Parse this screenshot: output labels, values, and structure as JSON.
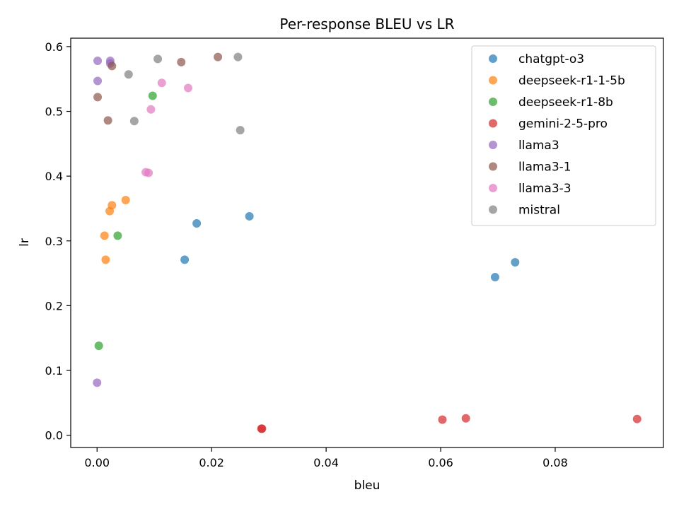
{
  "chart_data": {
    "type": "scatter",
    "title": "Per-response BLEU vs LR",
    "xlabel": "bleu",
    "ylabel": "lr",
    "xlim": [
      -0.0046,
      0.0989
    ],
    "ylim": [
      -0.019,
      0.613
    ],
    "xticks": [
      0.0,
      0.02,
      0.04,
      0.06,
      0.08
    ],
    "xtick_labels": [
      "0.00",
      "0.02",
      "0.04",
      "0.06",
      "0.08"
    ],
    "yticks": [
      0.0,
      0.1,
      0.2,
      0.3,
      0.4,
      0.5,
      0.6
    ],
    "ytick_labels": [
      "0.0",
      "0.1",
      "0.2",
      "0.3",
      "0.4",
      "0.5",
      "0.6"
    ],
    "grid": false,
    "legend_position": "top-right",
    "series": [
      {
        "name": "chatgpt-o3",
        "color": "#1f77b4",
        "points": [
          [
            0.0153,
            0.271
          ],
          [
            0.0174,
            0.327
          ],
          [
            0.0266,
            0.338
          ],
          [
            0.0695,
            0.244
          ],
          [
            0.073,
            0.267
          ]
        ]
      },
      {
        "name": "deepseek-r1-1-5b",
        "color": "#ff7f0e",
        "points": [
          [
            0.0013,
            0.308
          ],
          [
            0.0015,
            0.271
          ],
          [
            0.0022,
            0.346
          ],
          [
            0.0026,
            0.355
          ],
          [
            0.005,
            0.363
          ]
        ]
      },
      {
        "name": "deepseek-r1-8b",
        "color": "#2ca02c",
        "points": [
          [
            0.0036,
            0.308
          ],
          [
            0.0097,
            0.524
          ],
          [
            0.0003,
            0.138
          ]
        ]
      },
      {
        "name": "gemini-2-5-pro",
        "color": "#d62728",
        "points": [
          [
            0.0287,
            0.01
          ],
          [
            0.0288,
            0.01
          ],
          [
            0.0603,
            0.024
          ],
          [
            0.0644,
            0.026
          ],
          [
            0.0943,
            0.025
          ]
        ]
      },
      {
        "name": "llama3",
        "color": "#9467bd",
        "points": [
          [
            0.0001,
            0.578
          ],
          [
            0.0023,
            0.578
          ],
          [
            0.0023,
            0.574
          ],
          [
            0.0001,
            0.547
          ],
          [
            0.0,
            0.081
          ]
        ]
      },
      {
        "name": "llama3-1",
        "color": "#8c564b",
        "points": [
          [
            0.0026,
            0.57
          ],
          [
            0.0001,
            0.522
          ],
          [
            0.0019,
            0.486
          ],
          [
            0.0147,
            0.576
          ],
          [
            0.0211,
            0.584
          ]
        ]
      },
      {
        "name": "llama3-3",
        "color": "#e377c2",
        "points": [
          [
            0.0113,
            0.544
          ],
          [
            0.0159,
            0.536
          ],
          [
            0.0094,
            0.503
          ],
          [
            0.0085,
            0.406
          ],
          [
            0.009,
            0.405
          ]
        ]
      },
      {
        "name": "mistral",
        "color": "#7f7f7f",
        "points": [
          [
            0.0106,
            0.581
          ],
          [
            0.0055,
            0.557
          ],
          [
            0.0065,
            0.485
          ],
          [
            0.0246,
            0.584
          ],
          [
            0.025,
            0.471
          ]
        ]
      }
    ]
  }
}
